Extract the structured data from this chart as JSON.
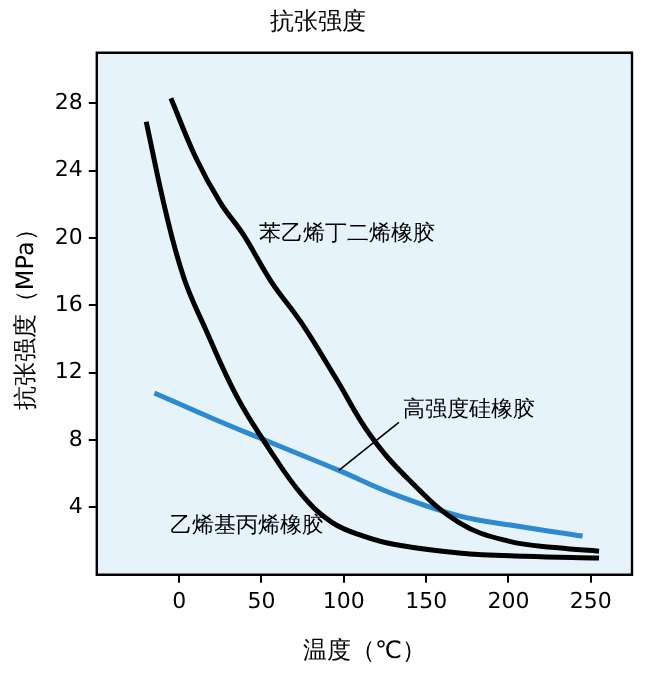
{
  "chart_data": {
    "type": "line",
    "title": "抗张强度",
    "xlabel": "温度（℃）",
    "ylabel": "抗张强度（MPa）",
    "xlim": [
      -50,
      275
    ],
    "xticks": [
      0,
      50,
      100,
      150,
      200,
      250
    ],
    "ylim": [
      0,
      31
    ],
    "yticks": [
      4,
      8,
      12,
      16,
      20,
      24,
      28
    ],
    "grid": false,
    "legend": false,
    "marker": "none",
    "line_style": "solid",
    "series": [
      {
        "name": "苯乙烯丁二烯橡胶",
        "color": "#000000",
        "x": [
          -5,
          10,
          25,
          39,
          56,
          74,
          95,
          116,
          140,
          170,
          200,
          230,
          255
        ],
        "values": [
          28.3,
          24.8,
          22.1,
          20.2,
          17.4,
          15,
          11.7,
          8.3,
          5.6,
          3.1,
          2.0,
          1.6,
          1.4
        ]
      },
      {
        "name": "乙烯基丙烯橡胶",
        "color": "#000000",
        "x": [
          -20,
          -8,
          3,
          16,
          35,
          54.5,
          75,
          93,
          112,
          131,
          170,
          210,
          255
        ],
        "values": [
          26.9,
          21.5,
          17.6,
          14.6,
          10.6,
          7.5,
          4.7,
          3.1,
          2.3,
          1.8,
          1.3,
          1.1,
          1.0
        ]
      },
      {
        "color": "#2d8ad0",
        "x": [
          -15,
          20,
          54.5,
          97,
          130,
          170,
          205,
          245
        ],
        "values": [
          10.8,
          9.3,
          7.9,
          6.2,
          4.8,
          3.5,
          2.9,
          2.3
        ]
      }
    ],
    "annotations": [
      {
        "text": "高强度硅橡胶",
        "x": 97,
        "y": 6.2
      }
    ]
  }
}
